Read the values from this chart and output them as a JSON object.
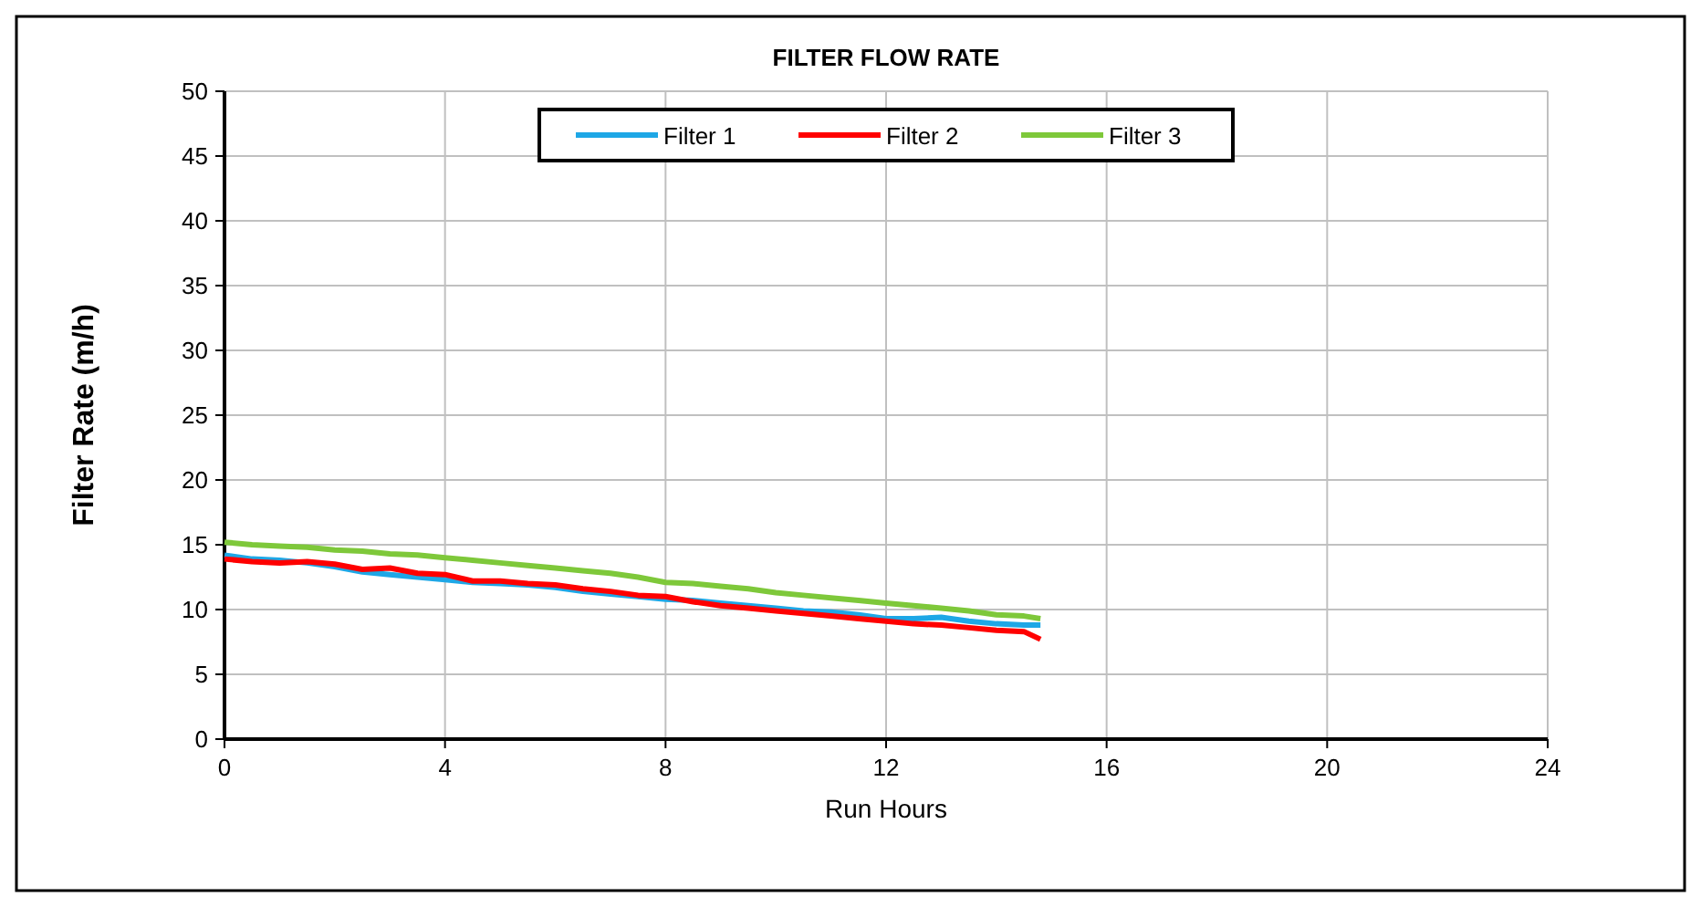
{
  "chart_data": {
    "type": "line",
    "title": "FILTER FLOW RATE",
    "xlabel": "Run Hours",
    "ylabel": "Filter Rate (m/h)",
    "x": [
      0,
      0.5,
      1,
      1.5,
      2,
      2.5,
      3,
      3.5,
      4,
      4.5,
      5,
      5.5,
      6,
      6.5,
      7,
      7.5,
      8,
      8.5,
      9,
      9.5,
      10,
      10.5,
      11,
      11.5,
      12,
      12.5,
      13,
      13.5,
      14,
      14.5,
      14.8
    ],
    "series": [
      {
        "name": "Filter 1",
        "color": "#1ea7e6",
        "values": [
          14.2,
          13.9,
          13.8,
          13.6,
          13.3,
          12.9,
          12.7,
          12.5,
          12.3,
          12.1,
          12,
          11.9,
          11.7,
          11.4,
          11.2,
          11,
          10.8,
          10.7,
          10.5,
          10.3,
          10.1,
          9.9,
          9.8,
          9.6,
          9.3,
          9.3,
          9.4,
          9.1,
          8.9,
          8.8,
          8.8
        ]
      },
      {
        "name": "Filter 2",
        "color": "#ff0000",
        "values": [
          13.9,
          13.7,
          13.6,
          13.7,
          13.5,
          13.1,
          13.2,
          12.8,
          12.7,
          12.2,
          12.2,
          12,
          11.9,
          11.6,
          11.4,
          11.1,
          11,
          10.6,
          10.3,
          10.1,
          9.9,
          9.7,
          9.5,
          9.3,
          9.1,
          8.9,
          8.8,
          8.6,
          8.4,
          8.3,
          7.7
        ]
      },
      {
        "name": "Filter 3",
        "color": "#7ec83a",
        "values": [
          15.2,
          15,
          14.9,
          14.8,
          14.6,
          14.5,
          14.3,
          14.2,
          14,
          13.8,
          13.6,
          13.4,
          13.2,
          13,
          12.8,
          12.5,
          12.1,
          12,
          11.8,
          11.6,
          11.3,
          11.1,
          10.9,
          10.7,
          10.5,
          10.3,
          10.1,
          9.9,
          9.6,
          9.5,
          9.3
        ]
      }
    ],
    "xlim": [
      0,
      24
    ],
    "xticks": [
      0,
      4,
      8,
      12,
      16,
      20,
      24
    ],
    "ylim": [
      0,
      50
    ],
    "yticks": [
      0,
      5,
      10,
      15,
      20,
      25,
      30,
      35,
      40,
      45,
      50
    ],
    "grid": true,
    "legend": "top",
    "marker": "none",
    "line_style": "solid"
  }
}
